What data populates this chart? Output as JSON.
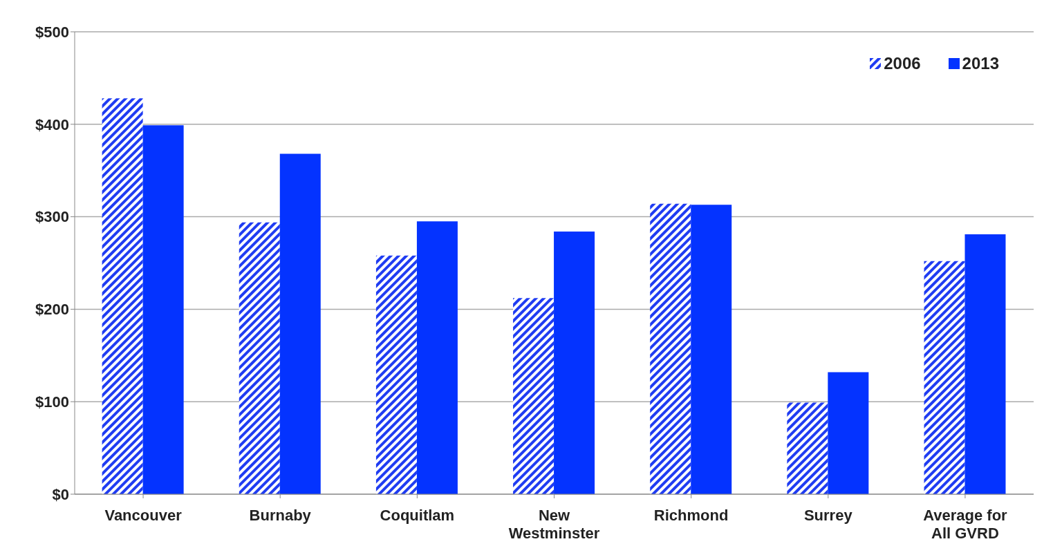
{
  "chart_data": {
    "type": "bar",
    "categories": [
      "Vancouver",
      "Burnaby",
      "Coquitlam",
      "New Westminster",
      "Richmond",
      "Surrey",
      "Average for All GVRD"
    ],
    "series": [
      {
        "name": "2006",
        "color": "#1f3cf2",
        "values": [
          428,
          294,
          258,
          212,
          314,
          99,
          252
        ]
      },
      {
        "name": "2013",
        "color": "#0433ff",
        "values": [
          399,
          368,
          295,
          284,
          313,
          132,
          281
        ]
      }
    ],
    "ylim": [
      0,
      500
    ],
    "yticks": [
      {
        "value": 0,
        "label": "$0"
      },
      {
        "value": 100,
        "label": "$100"
      },
      {
        "value": 200,
        "label": "$200"
      },
      {
        "value": 300,
        "label": "$300"
      },
      {
        "value": 400,
        "label": "$400"
      },
      {
        "value": 500,
        "label": "$500"
      }
    ],
    "grid": "y",
    "legend": "top right"
  }
}
